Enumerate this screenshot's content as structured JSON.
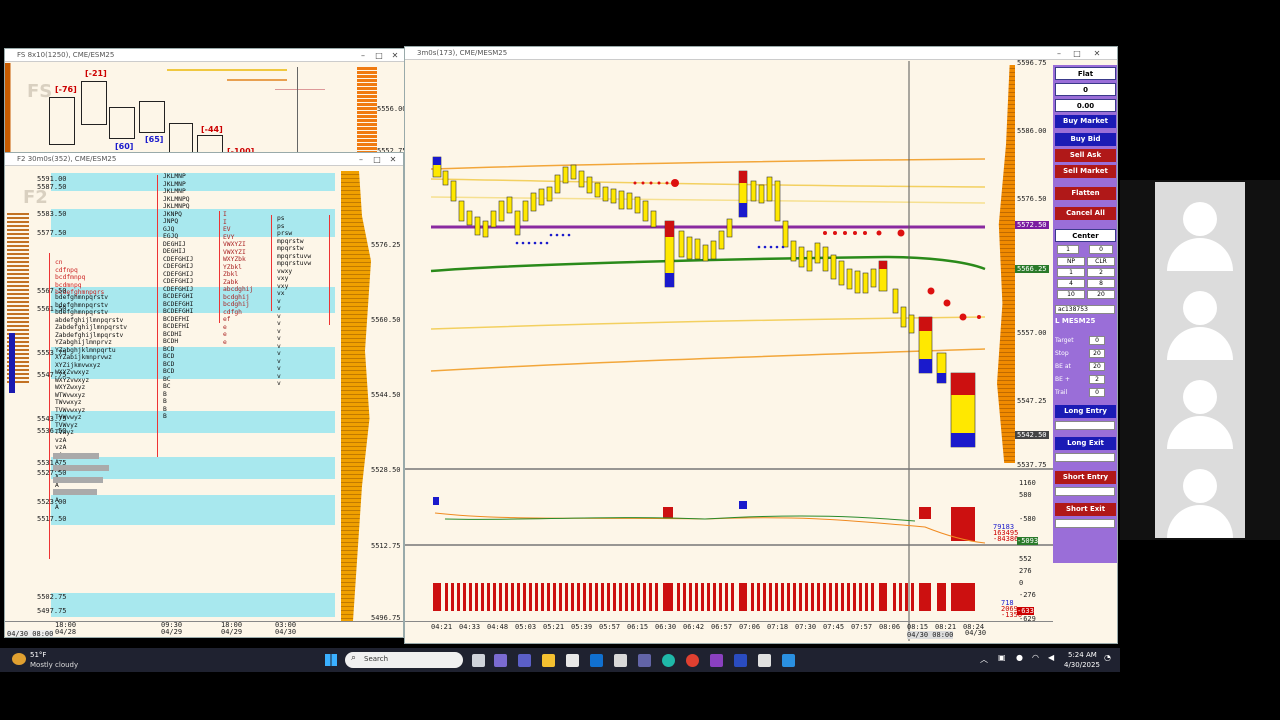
{
  "screen": {
    "win_fs": {
      "title": "FS 8x10(1250), CME/ESM25",
      "watermark": "FS"
    },
    "win_f2": {
      "title": "F2 30m0s(352), CME/ESM25",
      "watermark": "F2"
    },
    "win_main": {
      "title": "3m0s(173), CME/MESM25"
    },
    "fs_prices": [
      "5556.00",
      "5552.75"
    ],
    "fs_labels": [
      "[-76]",
      "[-21]",
      "[60]",
      "[65]",
      "[-44]",
      "[-100]"
    ],
    "f2_left_prices": [
      "5591.00",
      "5587.50",
      "5583.50",
      "5577.50",
      "5567.50",
      "5561.50",
      "5553.75",
      "5547.75",
      "5543.75",
      "5536.50",
      "5531.75",
      "5527.50",
      "5523.00",
      "5517.50",
      "5502.75",
      "5497.75"
    ],
    "f2_right_prices": [
      "5576.25",
      "5560.50",
      "5544.50",
      "5528.50",
      "5512.75",
      "5496.75"
    ],
    "f2_time_labels": [
      {
        "t": "18:00",
        "d": "04/28"
      },
      {
        "t": "09:30",
        "d": "04/29"
      },
      {
        "t": "18:00",
        "d": "04/29"
      },
      {
        "t": "03:00",
        "d": "04/30"
      }
    ],
    "f2_bottom_left": "04/30 08:00",
    "main_prices": [
      "5596.75",
      "5586.00",
      "5576.50",
      "5567.00",
      "5557.00",
      "5547.25",
      "5537.75"
    ],
    "main_price_tags": [
      {
        "v": "5572.50",
        "c": "#7a1aa0"
      },
      {
        "v": "5566.25",
        "c": "#2a7a2a"
      },
      {
        "v": "5542.50",
        "c": "#444"
      }
    ],
    "main_times": [
      "04:21",
      "04:33",
      "04:48",
      "05:03",
      "05:21",
      "05:39",
      "05:57",
      "06:15",
      "06:30",
      "06:42",
      "06:57",
      "07:06",
      "07:18",
      "07:30",
      "07:45",
      "07:57",
      "08:06",
      "08:15",
      "08:21",
      "08:24"
    ],
    "main_bottom_date": "04/30 08:00",
    "main_bottom_date2": "04/30",
    "ind1_scale": [
      "1160",
      "580",
      "-580",
      "-1160"
    ],
    "ind1_values": [
      "79183",
      "163495",
      "-84386",
      "-5093"
    ],
    "ind2_scale": [
      "552",
      "276",
      "0",
      "-276",
      "-629"
    ],
    "ind2_values": [
      "718",
      "2069",
      "-1350",
      "-633"
    ],
    "side": {
      "status": "Flat",
      "position": "0",
      "pnl": "0.00",
      "buy_market": "Buy Market",
      "buy_bid": "Buy Bid",
      "sell_ask": "Sell Ask",
      "sell_market": "Sell Market",
      "flatten": "Flatten",
      "cancel_all": "Cancel All",
      "center": "Center",
      "qty": "1",
      "qty2": "0",
      "np": "NP",
      "clr": "CLR",
      "grid": [
        "1",
        "2",
        "4",
        "8",
        "10",
        "20"
      ],
      "account": "ac138753",
      "instrument": "L MESM25",
      "fields": [
        {
          "label": "Target",
          "val": "0"
        },
        {
          "label": "Stop",
          "val": "20"
        },
        {
          "label": "BE at",
          "val": "20"
        },
        {
          "label": "BE +",
          "val": "2"
        },
        {
          "label": "Trail",
          "val": "0"
        }
      ],
      "long_entry": "Long Entry",
      "long_exit": "Long Exit",
      "short_entry": "Short Entry",
      "short_exit": "Short Exit"
    },
    "taskbar": {
      "weather_temp": "51°F",
      "weather_desc": "Mostly cloudy",
      "search": "Search",
      "time": "5:24 AM",
      "date": "4/30/2025"
    }
  }
}
